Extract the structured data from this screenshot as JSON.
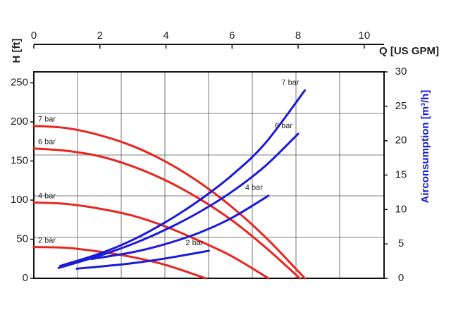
{
  "chart_data": {
    "type": "line",
    "x_label": "Q [US GPM]",
    "y_label": "H [ft]",
    "y2_label": "Airconsumption [m³/h]",
    "xlim": [
      0,
      10.6
    ],
    "xticks": [
      0,
      2,
      4,
      6,
      8,
      10
    ],
    "ylim": [
      0,
      264
    ],
    "yticks": [
      0,
      50,
      100,
      150,
      200,
      250
    ],
    "y2lim": [
      0,
      30
    ],
    "y2ticks": [
      0,
      5,
      10,
      15,
      20,
      25,
      30
    ],
    "grid": true,
    "series": [
      {
        "name": "7 bar",
        "color": "#e8251f",
        "x": [
          0,
          1,
          2,
          3,
          4,
          5,
          6,
          7,
          8,
          8.2
        ],
        "values": [
          195,
          192,
          183,
          169,
          149,
          123,
          91,
          53,
          9,
          0
        ]
      },
      {
        "name": "6 bar",
        "color": "#e8251f",
        "x": [
          0,
          1,
          2,
          3,
          4,
          5,
          6,
          7,
          8.05
        ],
        "values": [
          166,
          163,
          156,
          143,
          125,
          102,
          74,
          40,
          0
        ]
      },
      {
        "name": "4 bar",
        "color": "#e8251f",
        "x": [
          0,
          1,
          2,
          3,
          4,
          5,
          6,
          7.1
        ],
        "values": [
          97,
          95,
          89,
          80,
          66,
          48,
          28,
          0
        ]
      },
      {
        "name": "2 bar",
        "color": "#e8251f",
        "x": [
          0,
          1,
          2,
          3,
          4,
          5.2
        ],
        "values": [
          40,
          39,
          34,
          27,
          17,
          0
        ]
      },
      {
        "name": "7 bar",
        "color": "#1a1adb",
        "axis": "y2",
        "x": [
          0.8,
          2,
          3,
          4,
          5,
          6,
          7,
          8.2
        ],
        "values": [
          1.8,
          3.6,
          5.6,
          8.2,
          11.3,
          15,
          19.6,
          27.3
        ]
      },
      {
        "name": "6 bar",
        "color": "#1a1adb",
        "axis": "y2",
        "x": [
          0.75,
          2,
          3,
          4,
          5,
          6,
          7,
          8
        ],
        "values": [
          1.5,
          3.3,
          5,
          7.1,
          9.6,
          12.6,
          16.3,
          21
        ]
      },
      {
        "name": "4 bar",
        "color": "#1a1adb",
        "axis": "y2",
        "x": [
          1.75,
          3,
          4,
          5,
          6,
          7.1
        ],
        "values": [
          2.8,
          3.8,
          5,
          6.6,
          8.8,
          12
        ]
      },
      {
        "name": "2 bar",
        "color": "#1a1adb",
        "axis": "y2",
        "x": [
          1.3,
          2,
          3,
          4,
          5.3
        ],
        "values": [
          1.4,
          1.7,
          2.2,
          2.9,
          4
        ]
      }
    ]
  }
}
